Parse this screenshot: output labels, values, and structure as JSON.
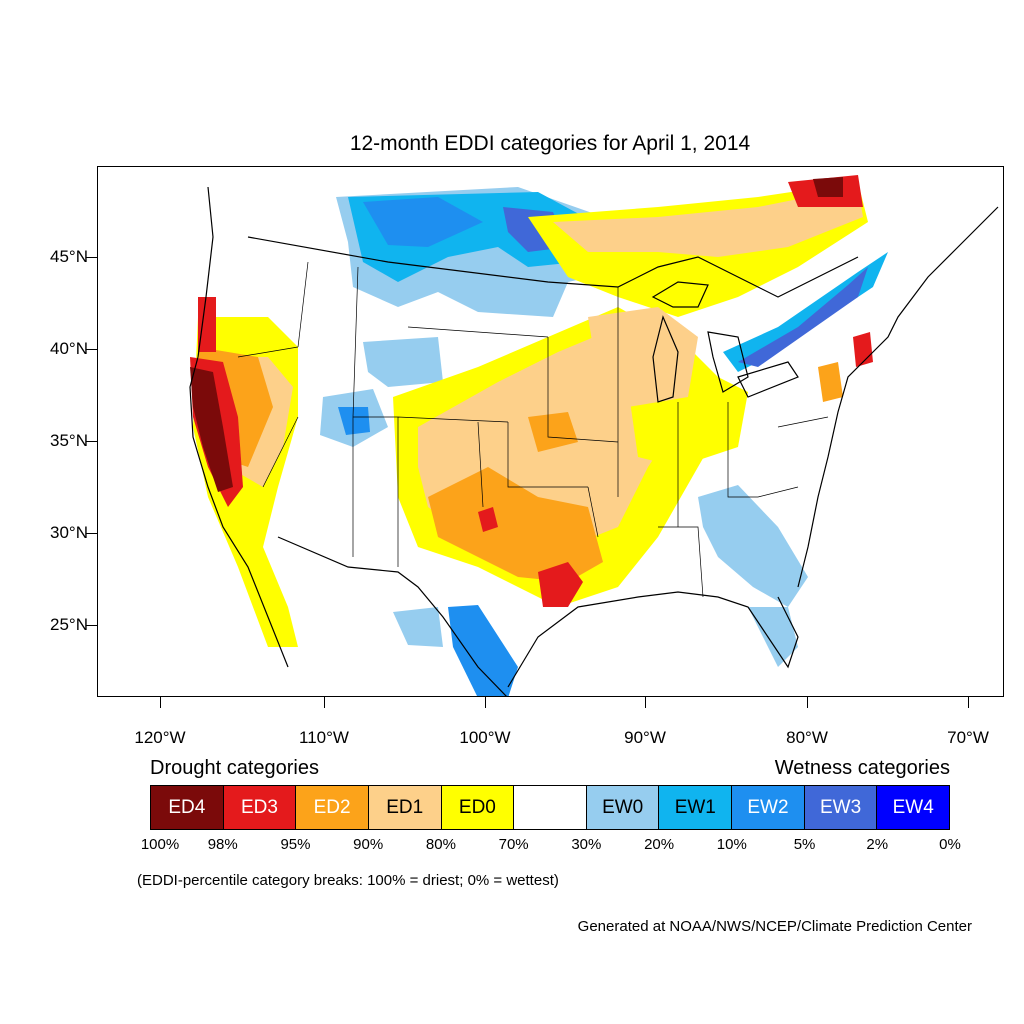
{
  "title": "12-month EDDI categories for April 1, 2014",
  "lat_labels": [
    "45°N",
    "40°N",
    "35°N",
    "30°N",
    "25°N"
  ],
  "lon_labels": [
    "120°W",
    "110°W",
    "100°W",
    "90°W",
    "80°W",
    "70°W"
  ],
  "legend": {
    "drought_heading": "Drought categories",
    "wetness_heading": "Wetness categories",
    "categories": [
      {
        "label": "ED4",
        "color": "#7b0a0a",
        "text_color": "#ffffff"
      },
      {
        "label": "ED3",
        "color": "#e41a1c",
        "text_color": "#ffffff"
      },
      {
        "label": "ED2",
        "color": "#fca31a",
        "text_color": "#ffffff"
      },
      {
        "label": "ED1",
        "color": "#fdd08a",
        "text_color": "#000000"
      },
      {
        "label": "ED0",
        "color": "#ffff00",
        "text_color": "#000000"
      },
      {
        "label": "",
        "color": "#ffffff",
        "text_color": "#000000"
      },
      {
        "label": "EW0",
        "color": "#96cdef",
        "text_color": "#000000"
      },
      {
        "label": "EW1",
        "color": "#10b4ef",
        "text_color": "#000000"
      },
      {
        "label": "EW2",
        "color": "#1e8ff0",
        "text_color": "#ffffff"
      },
      {
        "label": "EW3",
        "color": "#4068d8",
        "text_color": "#ffffff"
      },
      {
        "label": "EW4",
        "color": "#0000ff",
        "text_color": "#ffffff"
      }
    ],
    "percentiles": [
      "100%",
      "98%",
      "95%",
      "90%",
      "80%",
      "70%",
      "30%",
      "20%",
      "10%",
      "5%",
      "2%",
      "0%"
    ]
  },
  "note": "(EDDI-percentile category breaks: 100% = driest; 0% = wettest)",
  "credit": "Generated at NOAA/NWS/NCEP/Climate Prediction Center"
}
